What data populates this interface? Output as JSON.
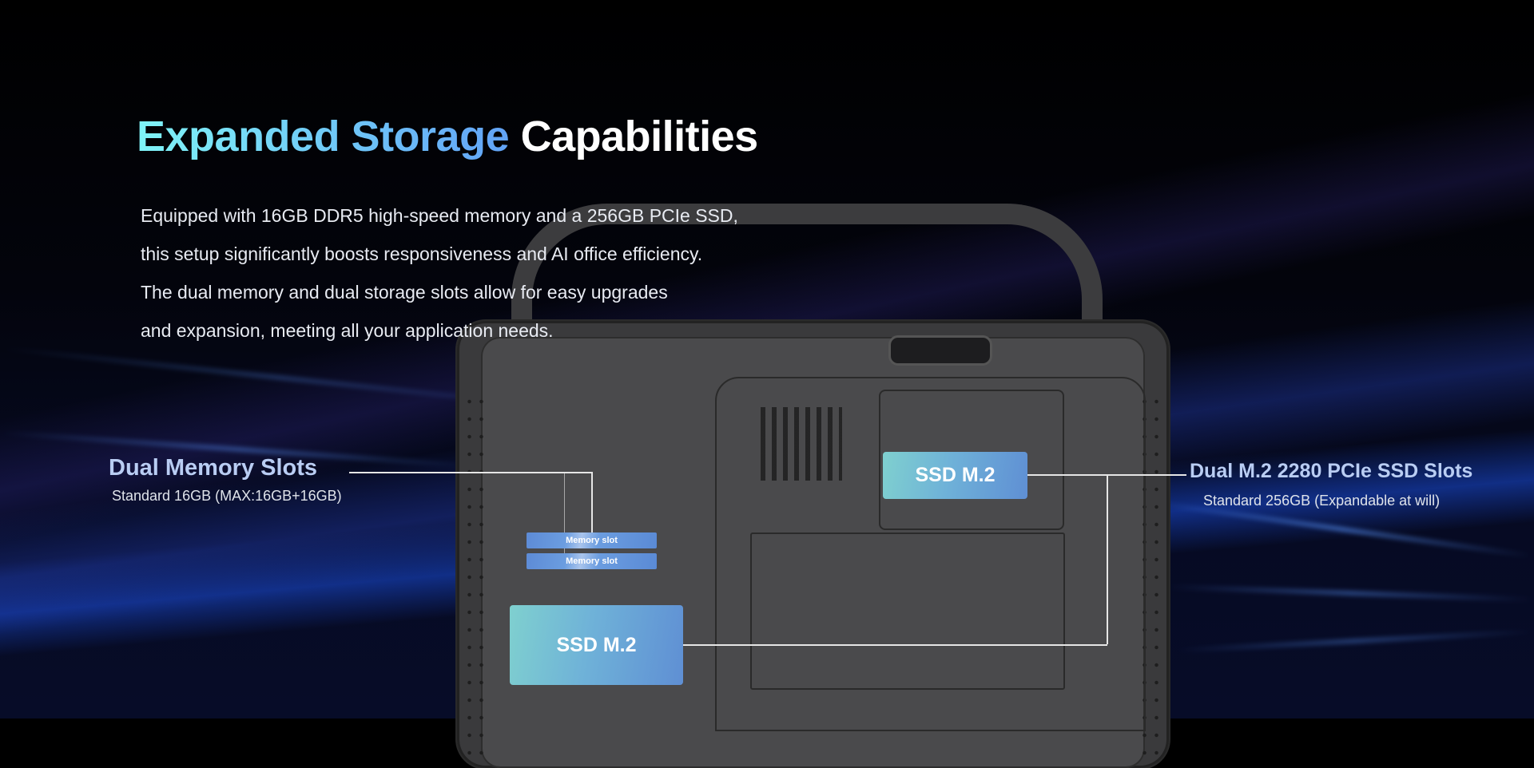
{
  "heading": {
    "highlight": "Expanded Storage",
    "rest": "Capabilities"
  },
  "description": [
    "Equipped with 16GB DDR5 high-speed memory and a 256GB PCIe SSD,",
    "this setup significantly boosts responsiveness and AI office efficiency.",
    "The dual memory and dual storage slots allow for easy upgrades",
    "and expansion, meeting all your application needs."
  ],
  "memory": {
    "title": "Dual Memory Slots",
    "subtitle": "Standard 16GB (MAX:16GB+16GB)",
    "slots": [
      "Memory slot",
      "Memory slot"
    ]
  },
  "ssd": {
    "title": "Dual M.2 2280 PCIe SSD Slots",
    "subtitle": "Standard 256GB (Expandable at will)",
    "labels": [
      "SSD M.2",
      "SSD M.2"
    ]
  },
  "colors": {
    "title_gradient_start": "#7ff3f7",
    "title_gradient_end": "#62a3f7",
    "label": "#b9cdf3",
    "background": "#000000"
  }
}
